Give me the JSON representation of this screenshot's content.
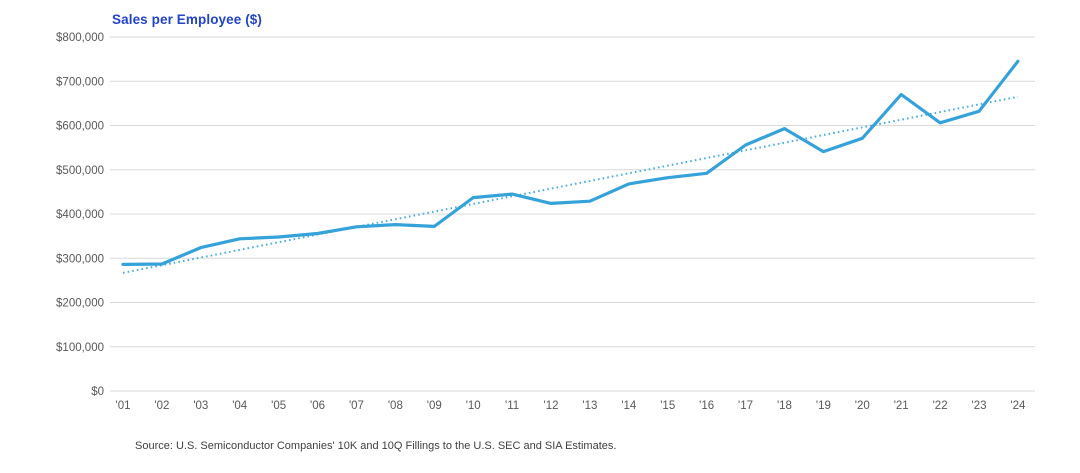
{
  "chart_data": {
    "type": "line",
    "title": "Sales per Employee ($)",
    "x": [
      "'01",
      "'02",
      "'03",
      "'04",
      "'05",
      "'06",
      "'07",
      "'08",
      "'09",
      "'10",
      "'11",
      "'12",
      "'13",
      "'14",
      "'15",
      "'16",
      "'17",
      "'18",
      "'19",
      "'20",
      "'21",
      "'22",
      "'23",
      "'24"
    ],
    "series": [
      {
        "name": "Sales per Employee",
        "style": "solid",
        "values": [
          286000,
          287000,
          324000,
          344000,
          348000,
          356000,
          371000,
          376000,
          372000,
          437000,
          445000,
          424000,
          429000,
          468000,
          482000,
          492000,
          556000,
          593000,
          541000,
          571000,
          670000,
          606000,
          632000,
          745000
        ]
      },
      {
        "name": "Linear trend",
        "style": "dotted",
        "trend_endpoints": [
          267000,
          665000
        ]
      }
    ],
    "ylabel": "",
    "xlabel": "",
    "ylim": [
      0,
      800000
    ],
    "ytick_step": 100000,
    "ytick_labels": [
      "$0",
      "$100,000",
      "$200,000",
      "$300,000",
      "$400,000",
      "$500,000",
      "$600,000",
      "$700,000",
      "$800,000"
    ],
    "grid": "horizontal",
    "legend": "none",
    "source": "Source: U.S. Semiconductor Companies' 10K and 10Q Fillings to the U.S. SEC and SIA Estimates."
  },
  "colors": {
    "line": "#36A2DA",
    "trend": "#4DACDF",
    "title": "#2444C6",
    "axis_text": "#595959",
    "grid": "#D9D9D9",
    "source_text": "#3F3F3F"
  }
}
